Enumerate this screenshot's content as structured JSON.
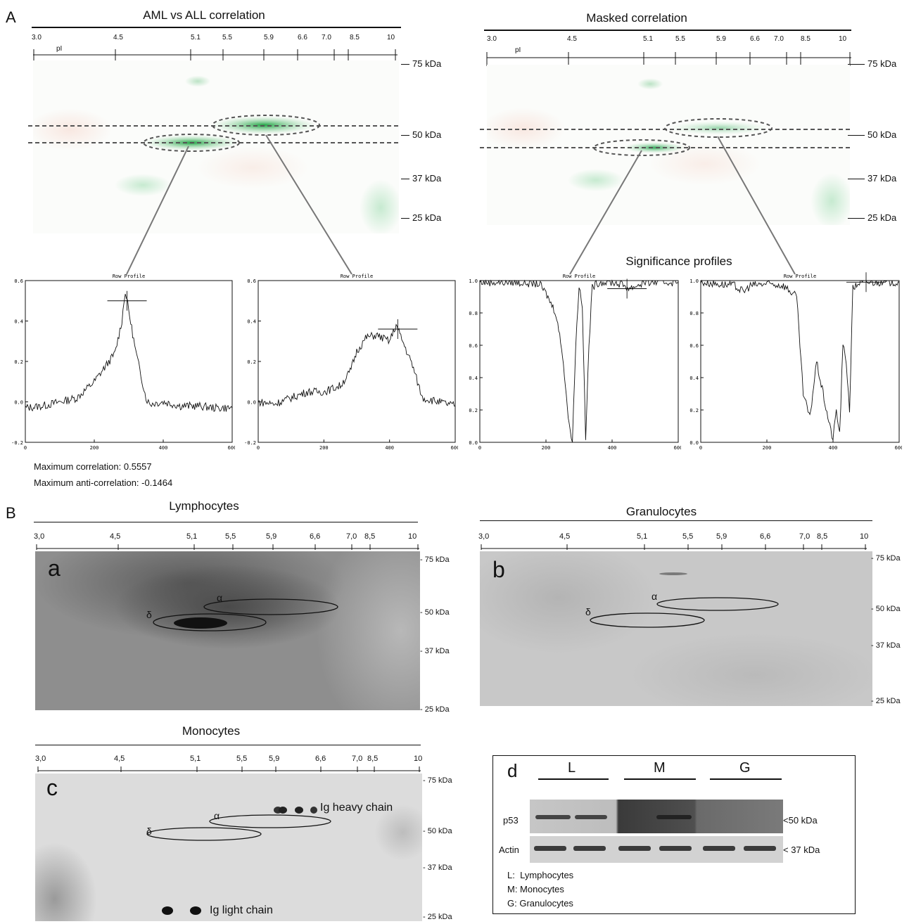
{
  "panelA": {
    "letter": "A",
    "left_title": "AML vs ALL correlation",
    "right_title": "Masked correlation",
    "ph_ticks": [
      "3.0",
      "4.5",
      "5.1",
      "5.5",
      "5.9",
      "6.6",
      "7.0",
      "8.5",
      "10"
    ],
    "pI_label": "pI",
    "mw_labels": [
      "75 kDa",
      "50 kDa",
      "37 kDa",
      "25 kDa"
    ],
    "significance_title": "Significance profiles",
    "profile_title": "Row Profile",
    "max_corr": "Maximum correlation: 0.5557",
    "max_anticorr": "Maximum anti-correlation: -0.1464"
  },
  "panelB": {
    "letter": "B",
    "ph_ticks": [
      "3,0",
      "4,5",
      "5,1",
      "5,5",
      "5,9",
      "6,6",
      "7,0",
      "8,5",
      "10"
    ],
    "mw_labels": [
      "75 kDa",
      "50 kDa",
      "37 kDa",
      "25 kDa"
    ],
    "lymph": {
      "title": "Lymphocytes",
      "letter": "a"
    },
    "gran": {
      "title": "Granulocytes",
      "letter": "b"
    },
    "mono": {
      "title": "Monocytes",
      "letter": "c"
    },
    "alpha": "α",
    "delta": "δ",
    "ig_heavy": "Ig heavy chain",
    "ig_light": "Ig light chain",
    "western": {
      "letter": "d",
      "lanes": [
        "L",
        "M",
        "G"
      ],
      "p53": "p53",
      "actin": "Actin",
      "mw50": "<50 kDa",
      "mw37": "< 37 kDa",
      "legend": [
        "L:  Lymphocytes",
        "M: Monocytes",
        "G: Granulocytes"
      ]
    }
  },
  "chart_data": [
    {
      "type": "line",
      "title": "Row Profile",
      "xlim": [
        0,
        600
      ],
      "ylim": [
        -0.2,
        0.6
      ],
      "x_ticks": [
        "0",
        "200",
        "400",
        "600"
      ],
      "y_ticks": [
        "-0.2",
        "0.0",
        "0.2",
        "0.4",
        "0.6"
      ],
      "x": [
        0,
        50,
        100,
        150,
        200,
        230,
        260,
        280,
        290,
        300,
        320,
        350,
        360,
        400,
        450,
        500,
        550,
        600
      ],
      "y": [
        -0.03,
        -0.02,
        0.0,
        0.02,
        0.1,
        0.17,
        0.24,
        0.4,
        0.55,
        0.45,
        0.25,
        0.02,
        -0.01,
        0.0,
        -0.02,
        -0.02,
        -0.03,
        -0.03
      ],
      "marker": {
        "x": 295,
        "y": 0.5
      }
    },
    {
      "type": "line",
      "title": "Row Profile",
      "xlim": [
        0,
        600
      ],
      "ylim": [
        -0.2,
        0.6
      ],
      "x_ticks": [
        "0",
        "200",
        "400",
        "600"
      ],
      "y_ticks": [
        "-0.2",
        "0.0",
        "0.2",
        "0.4",
        "0.6"
      ],
      "x": [
        0,
        50,
        100,
        150,
        200,
        250,
        280,
        300,
        330,
        360,
        400,
        420,
        440,
        470,
        500,
        550,
        600
      ],
      "y": [
        0.0,
        -0.01,
        0.02,
        0.05,
        0.05,
        0.08,
        0.15,
        0.25,
        0.32,
        0.33,
        0.3,
        0.38,
        0.3,
        0.18,
        0.02,
        0.0,
        -0.02
      ],
      "marker": {
        "x": 425,
        "y": 0.36
      }
    },
    {
      "type": "line",
      "title": "Row Profile",
      "xlim": [
        0,
        600
      ],
      "ylim": [
        0.0,
        1.0
      ],
      "x_ticks": [
        "0",
        "200",
        "400",
        "600"
      ],
      "y_ticks": [
        "0.0",
        "0.2",
        "0.4",
        "0.6",
        "0.8",
        "1.0"
      ],
      "x": [
        0,
        100,
        180,
        200,
        230,
        250,
        270,
        280,
        290,
        300,
        310,
        320,
        330,
        340,
        360,
        400,
        440,
        450,
        500,
        600
      ],
      "y": [
        0.99,
        0.99,
        0.98,
        0.92,
        0.8,
        0.55,
        0.1,
        0.02,
        0.6,
        0.97,
        0.85,
        0.02,
        0.6,
        0.96,
        0.99,
        0.99,
        0.97,
        0.95,
        0.99,
        0.99
      ],
      "marker": {
        "x": 445,
        "y": 0.95
      }
    },
    {
      "type": "line",
      "title": "Row Profile",
      "xlim": [
        0,
        600
      ],
      "ylim": [
        0.0,
        1.0
      ],
      "x_ticks": [
        "0",
        "200",
        "400",
        "600"
      ],
      "y_ticks": [
        "0.0",
        "0.2",
        "0.4",
        "0.6",
        "0.8",
        "1.0"
      ],
      "x": [
        0,
        50,
        100,
        130,
        150,
        200,
        250,
        290,
        300,
        310,
        330,
        350,
        370,
        390,
        400,
        410,
        420,
        430,
        440,
        450,
        460,
        480,
        500,
        600
      ],
      "y": [
        0.99,
        0.98,
        0.97,
        0.93,
        0.97,
        0.98,
        0.97,
        0.9,
        0.6,
        0.3,
        0.15,
        0.5,
        0.3,
        0.1,
        0.02,
        0.2,
        0.05,
        0.6,
        0.5,
        0.2,
        0.95,
        0.99,
        0.99,
        0.99
      ],
      "marker": {
        "x": 500,
        "y": 0.99
      }
    }
  ]
}
